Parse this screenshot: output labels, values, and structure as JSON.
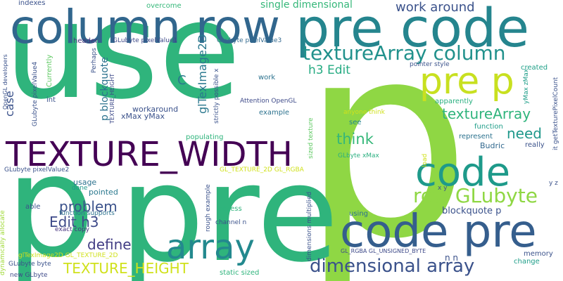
{
  "words": [
    {
      "id": "w01",
      "text": "use",
      "color": "#2fb47c"
    },
    {
      "id": "w02",
      "text": "p",
      "color": "#8fd744"
    },
    {
      "id": "w03",
      "text": "pre",
      "color": "#2fb47c"
    },
    {
      "id": "w04",
      "text": "p",
      "color": "#2fb47c"
    },
    {
      "id": "w05",
      "text": "column row",
      "color": "#31668d"
    },
    {
      "id": "w06",
      "text": "pre code",
      "color": "#25858e"
    },
    {
      "id": "w07",
      "text": "code pre",
      "color": "#355e8d"
    },
    {
      "id": "w08",
      "text": "code",
      "color": "#1e9a8a"
    },
    {
      "id": "w09",
      "text": "pre p",
      "color": "#c8e020"
    },
    {
      "id": "w10",
      "text": "TEXTURE_WIDTH",
      "color": "#440154"
    },
    {
      "id": "w11",
      "text": "array",
      "color": "#23898e"
    },
    {
      "id": "w12",
      "text": "textureArray column",
      "color": "#21918c"
    },
    {
      "id": "w13",
      "text": "dimensional array",
      "color": "#3b528b"
    },
    {
      "id": "w14",
      "text": "row GLubyte",
      "color": "#8fd744"
    },
    {
      "id": "w15",
      "text": "work around",
      "color": "#3b528b"
    },
    {
      "id": "w16",
      "text": "single dimensional",
      "color": "#35b779"
    },
    {
      "id": "w17",
      "text": "h3 Edit",
      "color": "#25ab82"
    },
    {
      "id": "w18",
      "text": "textureArray",
      "color": "#2fb47c"
    },
    {
      "id": "w19",
      "text": "think",
      "color": "#35b779"
    },
    {
      "id": "w20",
      "text": "need",
      "color": "#1f988b"
    },
    {
      "id": "w21",
      "text": "TEXTURE_HEIGHT",
      "color": "#d0e11c"
    },
    {
      "id": "w22",
      "text": "problem",
      "color": "#3b528b"
    },
    {
      "id": "w23",
      "text": "Edit h3",
      "color": "#3e4a89"
    },
    {
      "id": "w24",
      "text": "define",
      "color": "#433e85"
    },
    {
      "id": "w25",
      "text": "glTexImage2D",
      "color": "#2a788e"
    },
    {
      "id": "w26",
      "text": "C",
      "color": "#2a788e"
    },
    {
      "id": "w27",
      "text": "case",
      "color": "#3b528b"
    },
    {
      "id": "w28",
      "text": "p blockquote",
      "color": "#2c728e"
    },
    {
      "id": "w29",
      "text": "workaround",
      "color": "#3b528b"
    },
    {
      "id": "w30",
      "text": "xMax yMax",
      "color": "#3b528b"
    },
    {
      "id": "w31",
      "text": "usage",
      "color": "#2c728e"
    },
    {
      "id": "w32",
      "text": "pointed",
      "color": "#2a788e"
    },
    {
      "id": "w33",
      "text": "done",
      "color": "#1f988b"
    },
    {
      "id": "w34",
      "text": "populating",
      "color": "#2fb47c"
    },
    {
      "id": "w35",
      "text": "blockquote p",
      "color": "#3b528b"
    },
    {
      "id": "w36",
      "text": "Budric",
      "color": "#31688e"
    },
    {
      "id": "w37",
      "text": "indexes",
      "color": "#3b528b"
    },
    {
      "id": "w38",
      "text": "overcome",
      "color": "#35b779"
    },
    {
      "id": "w39",
      "text": "GLubyte pixelValue1",
      "color": "#3e4a89"
    },
    {
      "id": "w40",
      "text": "GLubyte pixelValue3",
      "color": "#31688e"
    },
    {
      "id": "w41",
      "text": "header",
      "color": "#46327e"
    },
    {
      "id": "w42",
      "text": "Perhaps",
      "color": "#3b528b"
    },
    {
      "id": "w43",
      "text": "int",
      "color": "#3b528b"
    },
    {
      "id": "w44",
      "text": "work",
      "color": "#2c728e"
    },
    {
      "id": "w45",
      "text": "pointer style",
      "color": "#3b528b"
    },
    {
      "id": "w46",
      "text": "created",
      "color": "#1fa088"
    },
    {
      "id": "w47",
      "text": "apparently",
      "color": "#29af7f"
    },
    {
      "id": "w48",
      "text": "Attention OpenGL",
      "color": "#3e4a89"
    },
    {
      "id": "w49",
      "text": "example",
      "color": "#2c728e"
    },
    {
      "id": "w50",
      "text": "anyone think",
      "color": "#d0e11c"
    },
    {
      "id": "w51",
      "text": "see",
      "color": "#25858e"
    },
    {
      "id": "w52",
      "text": "function",
      "color": "#1f9e89"
    },
    {
      "id": "w53",
      "text": "represent",
      "color": "#2c728e"
    },
    {
      "id": "w54",
      "text": "really",
      "color": "#3b528b"
    },
    {
      "id": "w55",
      "text": "GLbyte xMax",
      "color": "#29af7f"
    },
    {
      "id": "w56",
      "text": "GL_TEXTURE_2D GL_RGBA",
      "color": "#d0e11c"
    },
    {
      "id": "w57",
      "text": "GLubyte pixelValue2",
      "color": "#3b528b"
    },
    {
      "id": "w58",
      "text": "function supports",
      "color": "#2c728e"
    },
    {
      "id": "w59",
      "text": "able",
      "color": "#3b528b"
    },
    {
      "id": "w60",
      "text": "exact copy",
      "color": "#46327e"
    },
    {
      "id": "w61",
      "text": "glTexImage2D GL_TEXTURE_2D",
      "color": "#d0e11c"
    },
    {
      "id": "w62",
      "text": "GLubyte byte",
      "color": "#3b528b"
    },
    {
      "id": "w63",
      "text": "new GLbyte",
      "color": "#3e4a89"
    },
    {
      "id": "w64",
      "text": "access",
      "color": "#2fb47c"
    },
    {
      "id": "w65",
      "text": "channel n",
      "color": "#3b528b"
    },
    {
      "id": "w66",
      "text": "static sized",
      "color": "#2fb47c"
    },
    {
      "id": "w67",
      "text": "using",
      "color": "#2c728e"
    },
    {
      "id": "w68",
      "text": "GL_RGBA GL_UNSIGNED_BYTE",
      "color": "#3e4a89"
    },
    {
      "id": "w69",
      "text": "n n",
      "color": "#3b528b"
    },
    {
      "id": "w70",
      "text": "x y",
      "color": "#3b528b"
    },
    {
      "id": "w71",
      "text": "memory",
      "color": "#3b528b"
    },
    {
      "id": "w72",
      "text": "change",
      "color": "#1f9e89"
    },
    {
      "id": "w73",
      "text": "y z",
      "color": "#3b528b"
    },
    {
      "id": "w74",
      "text": "load",
      "color": "#d0e11c"
    },
    {
      "id": "w75",
      "text": "rough example",
      "color": "#3b528b"
    },
    {
      "id": "w76",
      "text": "pixels",
      "color": "#2fb47c"
    },
    {
      "id": "w77",
      "text": "Currently",
      "color": "#5ec962"
    },
    {
      "id": "w78",
      "text": "GLubyte pixelValue4",
      "color": "#3b528b"
    },
    {
      "id": "w79",
      "text": "OpenGL developers",
      "color": "#3b528b"
    },
    {
      "id": "w80",
      "text": "dynamically allocate",
      "color": "#a0da39"
    },
    {
      "id": "w81",
      "text": "TEXTURE_HEIGHT",
      "color": "#3e4a89"
    },
    {
      "id": "w82",
      "text": "strictly possible x",
      "color": "#3b528b"
    },
    {
      "id": "w83",
      "text": "sized texture",
      "color": "#5ec962"
    },
    {
      "id": "w84",
      "text": "dimensions multiplied",
      "color": "#3b528b"
    },
    {
      "id": "w85",
      "text": "yMax zMax",
      "color": "#1f9e89"
    },
    {
      "id": "w86",
      "text": "it getTexturePixelCount",
      "color": "#3b528b"
    }
  ]
}
